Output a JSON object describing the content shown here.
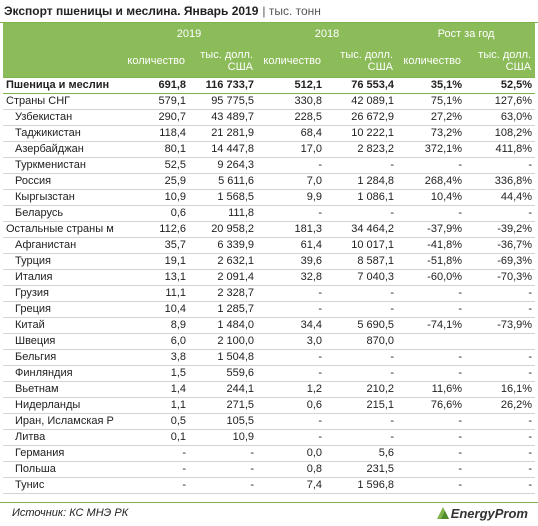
{
  "header": {
    "title": "Экспорт пшеницы и меслина. Январь 2019",
    "unit": "| тыс. тонн"
  },
  "table": {
    "groups": [
      "2019",
      "2018",
      "Рост за год"
    ],
    "columns": [
      "количество",
      "тыс. долл. США",
      "количество",
      "тыс. долл. США",
      "количество",
      "тыс. долл. США"
    ],
    "rows": [
      [
        "Пшеница и меслин",
        "691,8",
        "116 733,7",
        "512,1",
        "76 553,4",
        "35,1%",
        "52,5%"
      ],
      [
        "Страны СНГ",
        "579,1",
        "95 775,5",
        "330,8",
        "42 089,1",
        "75,1%",
        "127,6%"
      ],
      [
        "Узбекистан",
        "290,7",
        "43 489,7",
        "228,5",
        "26 672,9",
        "27,2%",
        "63,0%"
      ],
      [
        "Таджикистан",
        "118,4",
        "21 281,9",
        "68,4",
        "10 222,1",
        "73,2%",
        "108,2%"
      ],
      [
        "Азербайджан",
        "80,1",
        "14 447,8",
        "17,0",
        "2 823,2",
        "372,1%",
        "411,8%"
      ],
      [
        "Туркменистан",
        "52,5",
        "9 264,3",
        "-",
        "-",
        "-",
        "-"
      ],
      [
        "Россия",
        "25,9",
        "5 611,6",
        "7,0",
        "1 284,8",
        "268,4%",
        "336,8%"
      ],
      [
        "Кыргызстан",
        "10,9",
        "1 568,5",
        "9,9",
        "1 086,1",
        "10,4%",
        "44,4%"
      ],
      [
        "Беларусь",
        "0,6",
        "111,8",
        "-",
        "-",
        "-",
        "-"
      ],
      [
        "Остальные страны м",
        "112,6",
        "20 958,2",
        "181,3",
        "34 464,2",
        "-37,9%",
        "-39,2%"
      ],
      [
        "Афганистан",
        "35,7",
        "6 339,9",
        "61,4",
        "10 017,1",
        "-41,8%",
        "-36,7%"
      ],
      [
        "Турция",
        "19,1",
        "2 632,1",
        "39,6",
        "8 587,1",
        "-51,8%",
        "-69,3%"
      ],
      [
        "Италия",
        "13,1",
        "2 091,4",
        "32,8",
        "7 040,3",
        "-60,0%",
        "-70,3%"
      ],
      [
        "Грузия",
        "11,1",
        "2 328,7",
        "-",
        "-",
        "-",
        "-"
      ],
      [
        "Греция",
        "10,4",
        "1 285,7",
        "-",
        "-",
        "-",
        "-"
      ],
      [
        "Китай",
        "8,9",
        "1 484,0",
        "34,4",
        "5 690,5",
        "-74,1%",
        "-73,9%"
      ],
      [
        "Швеция",
        "6,0",
        "2 100,0",
        "3,0",
        "870,0",
        null,
        null
      ],
      [
        "Бельгия",
        "3,8",
        "1 504,8",
        "-",
        "-",
        "-",
        "-"
      ],
      [
        "Финляндия",
        "1,5",
        "559,6",
        "-",
        "-",
        "-",
        "-"
      ],
      [
        "Вьетнам",
        "1,4",
        "244,1",
        "1,2",
        "210,2",
        "11,6%",
        "16,1%"
      ],
      [
        "Нидерланды",
        "1,1",
        "271,5",
        "0,6",
        "215,1",
        "76,6%",
        "26,2%"
      ],
      [
        "Иран, Исламская Р",
        "0,5",
        "105,5",
        "-",
        "-",
        "-",
        "-"
      ],
      [
        "Литва",
        "0,1",
        "10,9",
        "-",
        "-",
        "-",
        "-"
      ],
      [
        "Германия",
        "-",
        "-",
        "0,0",
        "5,6",
        "-",
        "-"
      ],
      [
        "Польша",
        "-",
        "-",
        "0,8",
        "231,5",
        "-",
        "-"
      ],
      [
        "Тунис",
        "-",
        "-",
        "7,4",
        "1 596,8",
        "-",
        "-"
      ]
    ]
  },
  "footer": {
    "source": "Источник: КС МНЭ РК",
    "logo": "EnergyProm"
  }
}
